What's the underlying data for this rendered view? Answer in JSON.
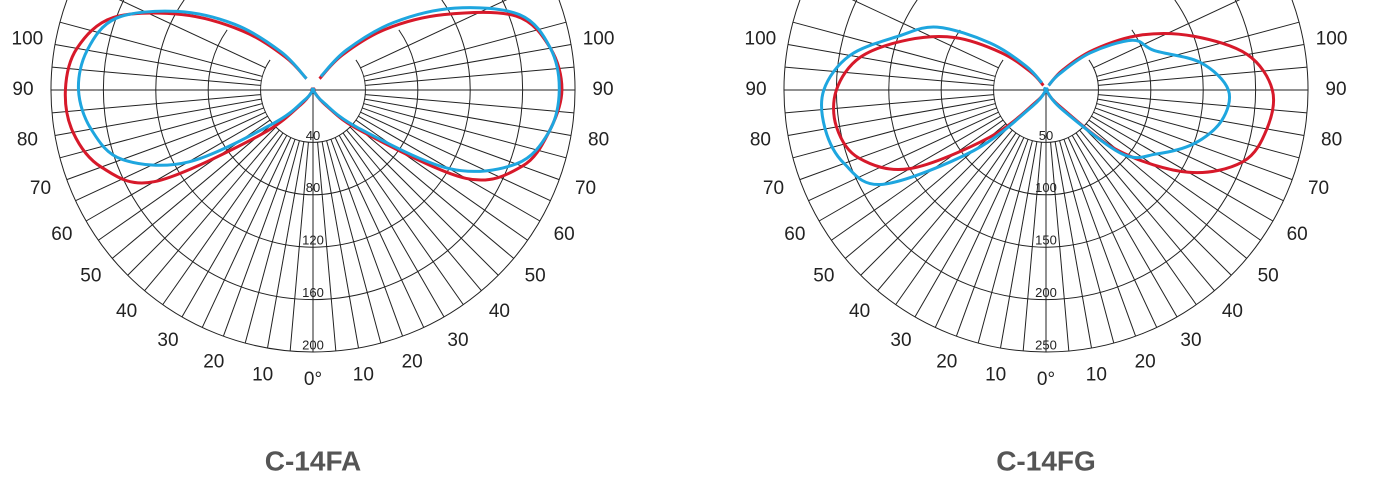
{
  "chart_data": [
    {
      "type": "polar",
      "title": "C-14FA",
      "angles": [
        -150,
        -140,
        -130,
        -120,
        -110,
        -100,
        -90,
        -80,
        -70,
        -60,
        -50,
        -40,
        -30,
        -20,
        -10,
        0,
        10,
        20,
        30,
        40,
        50,
        60,
        70,
        80,
        90,
        100,
        110,
        120,
        130,
        140,
        150
      ],
      "series": [
        {
          "color": "#d7192a",
          "values": [
            10,
            33,
            70,
            115,
            162,
            183,
            189,
            186,
            172,
            140,
            55,
            15,
            0,
            0,
            0,
            0,
            0,
            0,
            0,
            15,
            50,
            135,
            170,
            183,
            190,
            184,
            165,
            115,
            72,
            35,
            10
          ]
        },
        {
          "color": "#1ea6df",
          "values": [
            10,
            38,
            78,
            120,
            160,
            175,
            179,
            172,
            155,
            110,
            40,
            10,
            0,
            0,
            0,
            0,
            0,
            0,
            0,
            12,
            45,
            120,
            165,
            183,
            188,
            184,
            168,
            125,
            80,
            40,
            12
          ]
        }
      ],
      "rlim": [
        0,
        200
      ],
      "rticks": [
        40,
        80,
        120,
        160,
        200
      ],
      "angle_ticks": [
        {
          "value": -100,
          "label": "100"
        },
        {
          "value": -90,
          "label": "90"
        },
        {
          "value": -80,
          "label": "80"
        },
        {
          "value": -70,
          "label": "70"
        },
        {
          "value": -60,
          "label": "60"
        },
        {
          "value": -50,
          "label": "50"
        },
        {
          "value": -40,
          "label": "40"
        },
        {
          "value": -30,
          "label": "30"
        },
        {
          "value": -20,
          "label": "20"
        },
        {
          "value": -10,
          "label": "10"
        },
        {
          "value": 0,
          "label": "0°"
        },
        10,
        20,
        30,
        40,
        50,
        60,
        70,
        80,
        90,
        100
      ]
    },
    {
      "type": "polar",
      "title": "C-14FG",
      "angles": [
        -150,
        -140,
        -130,
        -120,
        -110,
        -100,
        -90,
        -80,
        -70,
        -60,
        -50,
        -40,
        -30,
        -20,
        -10,
        0,
        10,
        20,
        30,
        40,
        50,
        60,
        70,
        80,
        90,
        100,
        110,
        120,
        130,
        140,
        150
      ],
      "series": [
        {
          "color": "#d7192a",
          "values": [
            5,
            22,
            55,
            100,
            140,
            180,
            200,
            203,
            190,
            150,
            70,
            15,
            0,
            0,
            0,
            0,
            0,
            0,
            0,
            20,
            90,
            157,
            200,
            214,
            216,
            195,
            150,
            105,
            60,
            25,
            5
          ]
        },
        {
          "color": "#1ea6df",
          "values": [
            8,
            30,
            70,
            120,
            150,
            190,
            212,
            214,
            205,
            180,
            90,
            20,
            0,
            0,
            0,
            0,
            0,
            0,
            0,
            25,
            95,
            122,
            150,
            170,
            174,
            150,
            110,
            95,
            55,
            20,
            5
          ]
        }
      ],
      "rlim": [
        0,
        250
      ],
      "rticks": [
        50,
        100,
        150,
        200,
        250
      ],
      "angle_ticks": [
        {
          "value": -100,
          "label": "100"
        },
        {
          "value": -90,
          "label": "90"
        },
        {
          "value": -80,
          "label": "80"
        },
        {
          "value": -70,
          "label": "70"
        },
        {
          "value": -60,
          "label": "60"
        },
        {
          "value": -50,
          "label": "50"
        },
        {
          "value": -40,
          "label": "40"
        },
        {
          "value": -30,
          "label": "30"
        },
        {
          "value": -20,
          "label": "20"
        },
        {
          "value": -10,
          "label": "10"
        },
        {
          "value": 0,
          "label": "0°"
        },
        10,
        20,
        30,
        40,
        50,
        60,
        70,
        80,
        90,
        100
      ]
    }
  ]
}
